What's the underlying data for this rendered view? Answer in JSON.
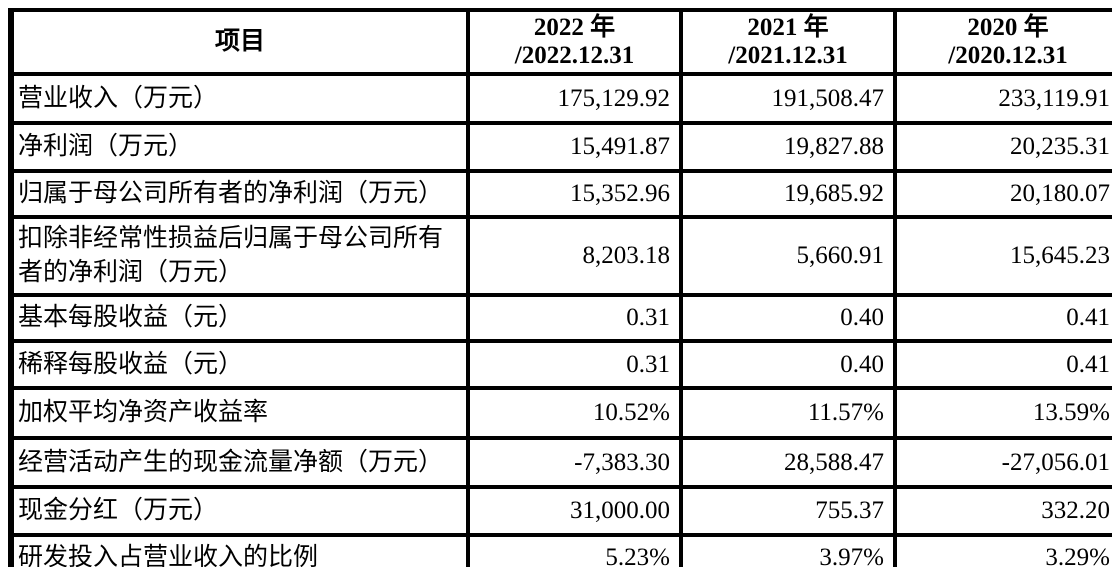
{
  "table": {
    "header": {
      "item_label": "项目",
      "columns": [
        {
          "line1": "2022 年",
          "line2": "/2022.12.31"
        },
        {
          "line1": "2021 年",
          "line2": "/2021.12.31"
        },
        {
          "line1": "2020 年",
          "line2": "/2020.12.31"
        }
      ]
    },
    "rows": [
      {
        "label": "营业收入（万元）",
        "values": [
          "175,129.92",
          "191,508.47",
          "233,119.91"
        ]
      },
      {
        "label": "净利润（万元）",
        "values": [
          "15,491.87",
          "19,827.88",
          "20,235.31"
        ]
      },
      {
        "label": "归属于母公司所有者的净利润（万元）",
        "values": [
          "15,352.96",
          "19,685.92",
          "20,180.07"
        ]
      },
      {
        "label": "扣除非经常性损益后归属于母公司所有者的净利润（万元）",
        "values": [
          "8,203.18",
          "5,660.91",
          "15,645.23"
        ]
      },
      {
        "label": "基本每股收益（元）",
        "values": [
          "0.31",
          "0.40",
          "0.41"
        ]
      },
      {
        "label": "稀释每股收益（元）",
        "values": [
          "0.31",
          "0.40",
          "0.41"
        ]
      },
      {
        "label": "加权平均净资产收益率",
        "values": [
          "10.52%",
          "11.57%",
          "13.59%"
        ]
      },
      {
        "label": "经营活动产生的现金流量净额（万元）",
        "values": [
          "-7,383.30",
          "28,588.47",
          "-27,056.01"
        ]
      },
      {
        "label": "现金分红（万元）",
        "values": [
          "31,000.00",
          "755.37",
          "332.20"
        ]
      },
      {
        "label": "研发投入占营业收入的比例",
        "values": [
          "5.23%",
          "3.97%",
          "3.29%"
        ]
      }
    ],
    "colors": {
      "text": "#000000",
      "border": "#000000",
      "background": "#ffffff"
    }
  }
}
